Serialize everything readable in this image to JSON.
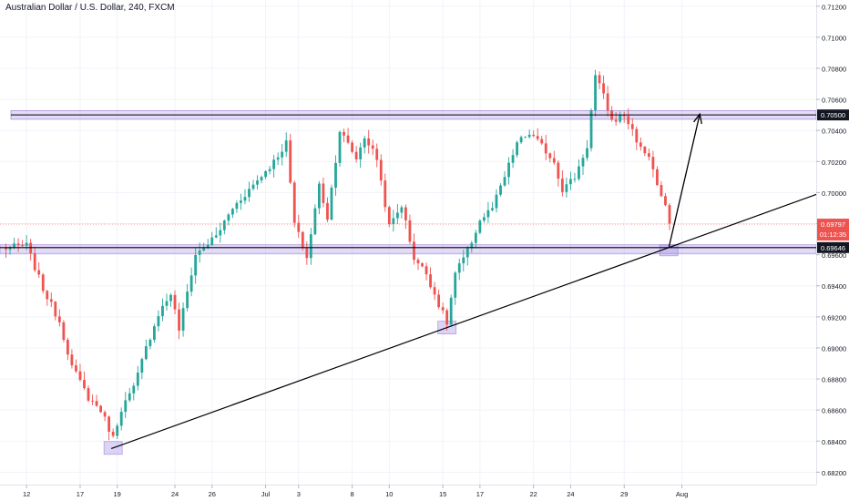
{
  "chart_data": {
    "type": "candlestick",
    "title": "Australian Dollar / U.S. Dollar, 240, FXCM",
    "symbol": "Australian Dollar / U.S. Dollar",
    "interval": "240",
    "source": "FXCM",
    "x_tick_labels": [
      "12",
      "17",
      "19",
      "24",
      "26",
      "Jul",
      "3",
      "8",
      "10",
      "15",
      "17",
      "22",
      "24",
      "29",
      "Aug"
    ],
    "y_tick_labels": [
      "0.71200",
      "0.71000",
      "0.70800",
      "0.70600",
      "0.70400",
      "0.70200",
      "0.70000",
      "0.69800",
      "0.69600",
      "0.69400",
      "0.69200",
      "0.69000",
      "0.68800",
      "0.68600",
      "0.68400",
      "0.68200"
    ],
    "ylim": [
      0.6812,
      0.7124
    ],
    "price_labels": {
      "resistance": "0.70500",
      "support": "0.69646",
      "current_price": "0.69797",
      "countdown": "01:12:35"
    },
    "key_levels": {
      "resistance": 0.705,
      "support": 0.69646,
      "current": 0.69797
    },
    "trendline": {
      "start_price": 0.68356,
      "through_price": 0.69131
    },
    "projection_target": 0.705,
    "swing_points": [
      [
        0,
        0.6964
      ],
      [
        6,
        0.6966
      ],
      [
        10,
        0.6938
      ],
      [
        14,
        0.6917
      ],
      [
        17,
        0.6888
      ],
      [
        21,
        0.6868
      ],
      [
        24,
        0.686
      ],
      [
        27,
        0.6842
      ],
      [
        29,
        0.6861
      ],
      [
        32,
        0.6874
      ],
      [
        35,
        0.69
      ],
      [
        38,
        0.6922
      ],
      [
        41,
        0.6935
      ],
      [
        43,
        0.6912
      ],
      [
        47,
        0.696
      ],
      [
        52,
        0.6972
      ],
      [
        56,
        0.699
      ],
      [
        61,
        0.7005
      ],
      [
        66,
        0.702
      ],
      [
        69,
        0.7032
      ],
      [
        71,
        0.698
      ],
      [
        74,
        0.6958
      ],
      [
        77,
        0.7005
      ],
      [
        79,
        0.6984
      ],
      [
        82,
        0.704
      ],
      [
        86,
        0.7022
      ],
      [
        88,
        0.7036
      ],
      [
        91,
        0.7022
      ],
      [
        94,
        0.6978
      ],
      [
        97,
        0.6992
      ],
      [
        100,
        0.6958
      ],
      [
        103,
        0.6948
      ],
      [
        106,
        0.6928
      ],
      [
        108,
        0.6916
      ],
      [
        110,
        0.6948
      ],
      [
        113,
        0.6962
      ],
      [
        116,
        0.6982
      ],
      [
        119,
        0.699
      ],
      [
        122,
        0.701
      ],
      [
        125,
        0.7032
      ],
      [
        128,
        0.7038
      ],
      [
        131,
        0.703
      ],
      [
        134,
        0.702
      ],
      [
        136,
        0.7002
      ],
      [
        139,
        0.701
      ],
      [
        142,
        0.703
      ],
      [
        144,
        0.7075
      ],
      [
        146,
        0.7062
      ],
      [
        148,
        0.7046
      ],
      [
        151,
        0.705
      ],
      [
        153,
        0.704
      ],
      [
        155,
        0.7028
      ],
      [
        157,
        0.7024
      ],
      [
        159,
        0.7005
      ],
      [
        161,
        0.699
      ],
      [
        162,
        0.698
      ]
    ],
    "grid": true,
    "colors": {
      "up": "#26a69a",
      "down": "#ef5350",
      "zone_fill": "#9c83e8",
      "zone_border": "#7e57c2",
      "line": "#000000",
      "grid": "#f0f3fa",
      "axis_text": "#131722",
      "current_price_bg": "#ef5350"
    }
  }
}
